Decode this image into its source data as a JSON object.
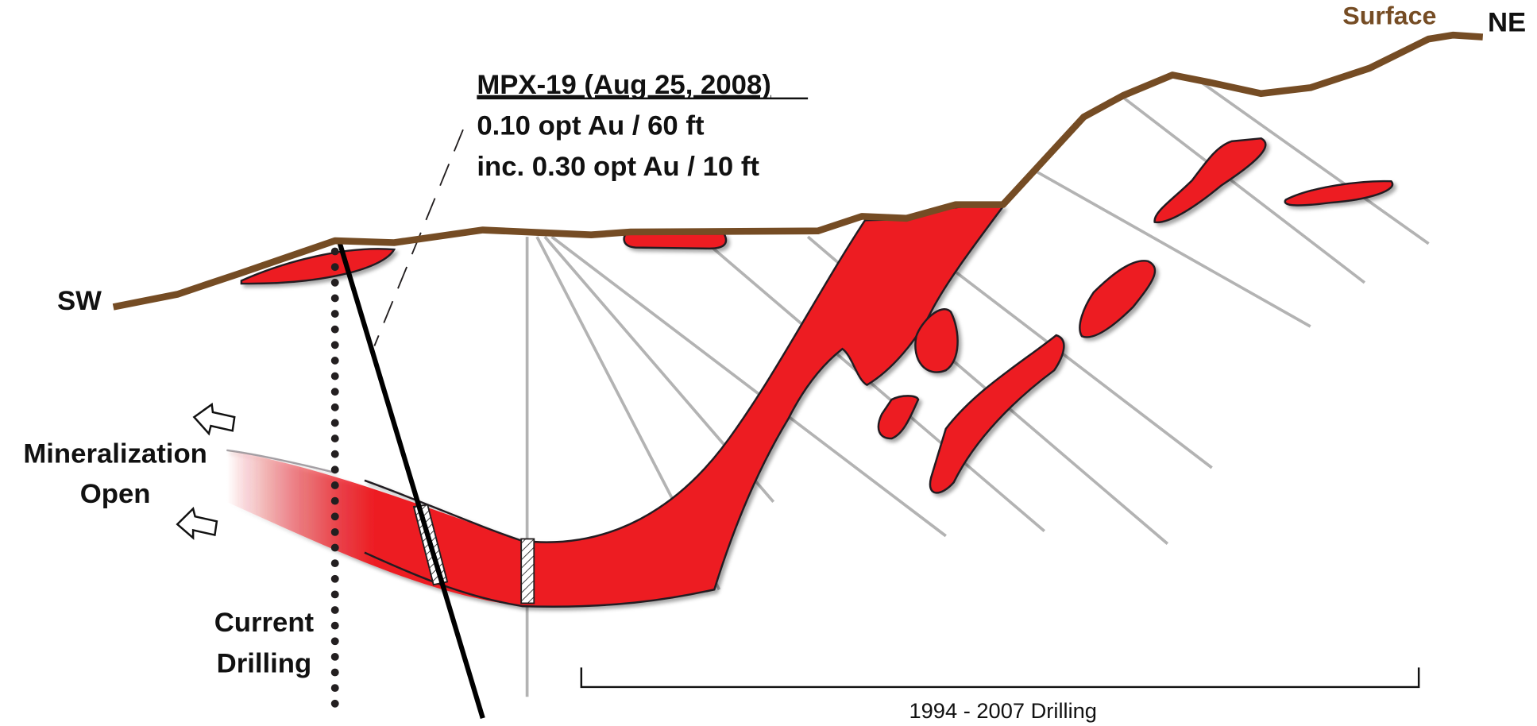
{
  "labels": {
    "surface": "Surface",
    "ne": "NE",
    "sw": "SW",
    "mineralization_open": [
      "Mineralization",
      "Open"
    ],
    "current_drilling": [
      "Current",
      "Drilling"
    ],
    "historic_drilling": "1994 - 2007 Drilling"
  },
  "callout": {
    "hole": "MPX-19 (Aug 25, 2008)",
    "lines": [
      "0.10 opt Au / 60 ft",
      "inc. 0.30 opt Au / 10 ft"
    ]
  }
}
